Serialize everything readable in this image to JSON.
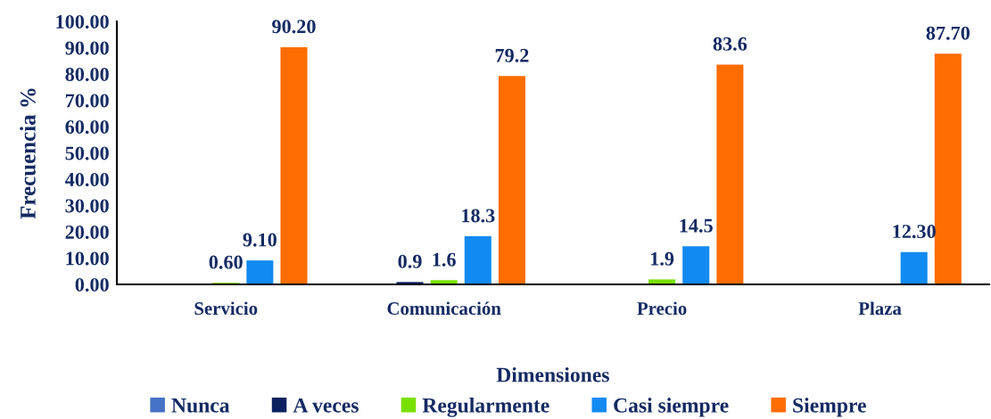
{
  "chart_data": {
    "type": "bar",
    "xlabel": "Dimensiones",
    "ylabel": "Frecuencia %",
    "categories": [
      "Servicio",
      "Comunicación",
      "Precio",
      "Plaza"
    ],
    "series": [
      {
        "name": "Nunca",
        "color": "#4472c4",
        "values": [
          null,
          null,
          null,
          null
        ]
      },
      {
        "name": "A veces",
        "color": "#0b2160",
        "values": [
          null,
          0.9,
          null,
          null
        ],
        "value_labels": [
          null,
          "0.9",
          null,
          null
        ]
      },
      {
        "name": "Regularmente",
        "color": "#78e000",
        "values": [
          0.6,
          1.6,
          1.9,
          null
        ],
        "value_labels": [
          "0.60",
          "1.6",
          "1.9",
          null
        ]
      },
      {
        "name": "Casi siempre",
        "color": "#118af2",
        "values": [
          9.1,
          18.3,
          14.5,
          12.3
        ],
        "value_labels": [
          "9.10",
          "18.3",
          "14.5",
          "12.30"
        ]
      },
      {
        "name": "Siempre",
        "color": "#ff6d00",
        "values": [
          90.2,
          79.2,
          83.6,
          87.7
        ],
        "value_labels": [
          "90.20",
          "79.2",
          "83.6",
          "87.70"
        ]
      }
    ],
    "ylim": [
      0,
      100
    ],
    "yticks": [
      {
        "value": 0,
        "label": "0.00"
      },
      {
        "value": 10,
        "label": "10.00"
      },
      {
        "value": 20,
        "label": "20.00"
      },
      {
        "value": 30,
        "label": "30.00"
      },
      {
        "value": 40,
        "label": "40.00"
      },
      {
        "value": 50,
        "label": "50.00"
      },
      {
        "value": 60,
        "label": "60.00"
      },
      {
        "value": 70,
        "label": "70.00"
      },
      {
        "value": 80,
        "label": "80.00"
      },
      {
        "value": 90,
        "label": "90.00"
      },
      {
        "value": 100,
        "label": "100.00"
      }
    ],
    "grid": false,
    "legend": "bottom"
  }
}
